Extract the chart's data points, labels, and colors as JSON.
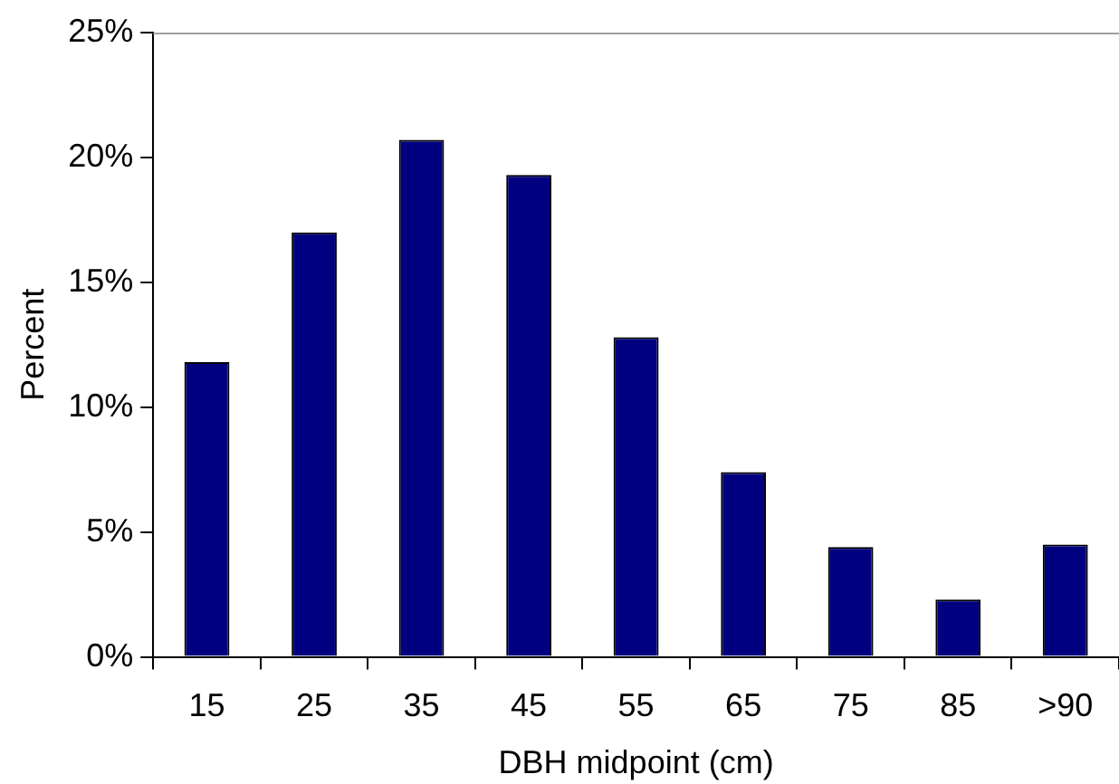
{
  "chart_data": {
    "type": "bar",
    "xlabel": "DBH midpoint (cm)",
    "ylabel": "Percent",
    "categories": [
      "15",
      "25",
      "35",
      "45",
      "55",
      "65",
      "75",
      "85",
      ">90"
    ],
    "values": [
      11.8,
      17.0,
      20.7,
      19.3,
      12.8,
      7.4,
      4.4,
      2.3,
      4.5
    ],
    "color": "#000080",
    "ylim": [
      0,
      25
    ],
    "yticks": [
      {
        "value": 0,
        "label": "0%"
      },
      {
        "value": 5,
        "label": "5%"
      },
      {
        "value": 10,
        "label": "10%"
      },
      {
        "value": 15,
        "label": "15%"
      },
      {
        "value": 20,
        "label": "20%"
      },
      {
        "value": 25,
        "label": "25%"
      }
    ],
    "grid": false,
    "legend": false
  }
}
